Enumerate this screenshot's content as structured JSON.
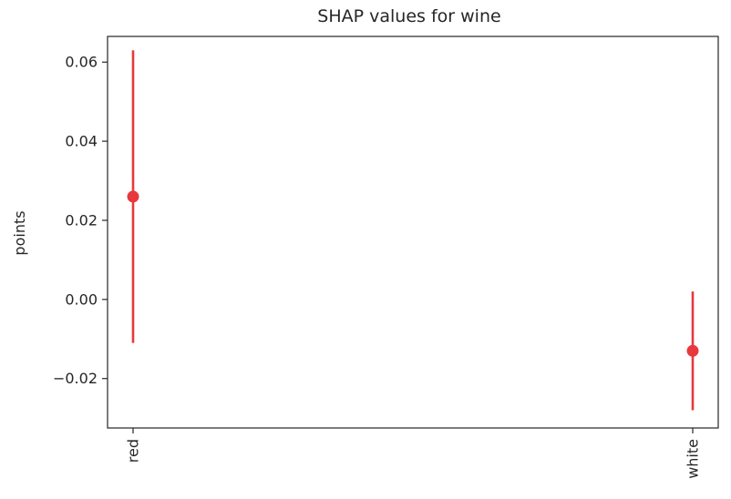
{
  "chart_data": {
    "type": "scatter",
    "title": "SHAP values for wine",
    "xlabel": "",
    "ylabel": "points",
    "categories": [
      "red",
      "white"
    ],
    "series": [
      {
        "points": [
          {
            "category": "red",
            "value": 0.026,
            "lower": -0.011,
            "upper": 0.063
          },
          {
            "category": "white",
            "value": -0.013,
            "lower": -0.028,
            "upper": 0.002
          }
        ]
      }
    ],
    "yticks": [
      {
        "value": -0.02,
        "label": "−0.02"
      },
      {
        "value": 0.0,
        "label": "0.00"
      },
      {
        "value": 0.02,
        "label": "0.02"
      },
      {
        "value": 0.04,
        "label": "0.04"
      },
      {
        "value": 0.06,
        "label": "0.06"
      }
    ],
    "ylim": [
      -0.0325,
      0.0665
    ],
    "grid": false,
    "colors": {
      "marker": "#e8383d",
      "axis": "#262626"
    }
  }
}
